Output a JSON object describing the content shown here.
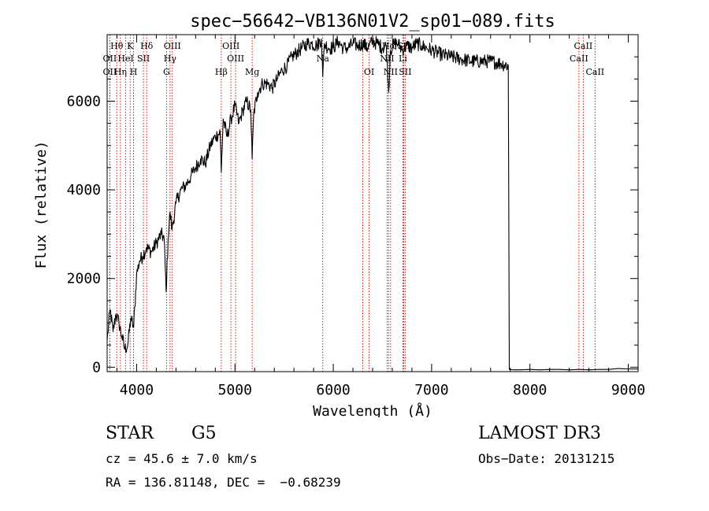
{
  "chart_data": {
    "type": "line",
    "title": "spec−56642−VB136N01V2_sp01−089.fits",
    "xlabel": "Wavelength (Å)",
    "ylabel": "Flux (relative)",
    "xlim": [
      3700,
      9100
    ],
    "ylim": [
      -100,
      7500
    ],
    "x_ticks": [
      4000,
      5000,
      6000,
      7000,
      8000,
      9000
    ],
    "x_tick_labels": [
      "4000",
      "5000",
      "6000",
      "7000",
      "8000",
      "9000"
    ],
    "y_ticks": [
      0,
      2000,
      4000,
      6000
    ],
    "y_tick_labels": [
      "0",
      "2000",
      "4000",
      "6000"
    ],
    "series": [
      {
        "name": "flux",
        "x": [
          3700,
          3730,
          3760,
          3790,
          3820,
          3850,
          3880,
          3910,
          3940,
          3970,
          4000,
          4030,
          4060,
          4100,
          4150,
          4200,
          4250,
          4280,
          4300,
          4320,
          4340,
          4360,
          4400,
          4450,
          4500,
          4550,
          4600,
          4650,
          4700,
          4750,
          4800,
          4850,
          4861,
          4880,
          4920,
          4960,
          5000,
          5040,
          5080,
          5120,
          5160,
          5175,
          5190,
          5230,
          5280,
          5330,
          5380,
          5430,
          5480,
          5530,
          5580,
          5630,
          5680,
          5730,
          5780,
          5830,
          5880,
          5893,
          5910,
          5950,
          6000,
          6050,
          6100,
          6150,
          6200,
          6250,
          6300,
          6350,
          6400,
          6450,
          6500,
          6540,
          6563,
          6580,
          6620,
          6660,
          6700,
          6750,
          6800,
          6850,
          6900,
          6950,
          7000,
          7100,
          7200,
          7300,
          7400,
          7500,
          7600,
          7700,
          7780,
          7785,
          7790,
          7800,
          7830,
          7900,
          8000,
          8100,
          8200,
          8300,
          8400,
          8500,
          8600,
          8700,
          8800,
          8900,
          9000,
          9100
        ],
        "y": [
          600,
          1300,
          800,
          1200,
          1000,
          700,
          400,
          500,
          1100,
          900,
          2100,
          2400,
          2500,
          2700,
          2600,
          2800,
          3000,
          2900,
          1700,
          2900,
          3500,
          3100,
          3700,
          4000,
          4100,
          4300,
          4500,
          4700,
          4600,
          5000,
          5200,
          5300,
          4400,
          5600,
          5200,
          5600,
          5900,
          5500,
          5800,
          6000,
          5800,
          4700,
          5700,
          6200,
          6400,
          6400,
          6300,
          6500,
          6700,
          6800,
          7000,
          7100,
          7200,
          7300,
          7300,
          7250,
          7400,
          6550,
          7300,
          7200,
          7200,
          7350,
          7200,
          7200,
          7300,
          7250,
          7300,
          7200,
          7350,
          7300,
          7200,
          7250,
          6200,
          7150,
          7300,
          7300,
          7150,
          7250,
          7200,
          7300,
          7250,
          7200,
          7150,
          7050,
          7000,
          6950,
          6900,
          6900,
          6900,
          6850,
          6800,
          3300,
          -50,
          -50,
          -60,
          -60,
          -50,
          -60,
          -50,
          -50,
          -60,
          -50,
          -60,
          -50,
          -50,
          -30,
          -40,
          -40
        ]
      }
    ],
    "spectral_lines": [
      {
        "label": "Hθ",
        "x": 3798,
        "row": 1
      },
      {
        "label": "OII",
        "x": 3727,
        "row": 2
      },
      {
        "label": "OII",
        "x": 3727,
        "row": 3
      },
      {
        "label": "K",
        "x": 3934,
        "row": 1
      },
      {
        "label": "HeI",
        "x": 3889,
        "row": 2
      },
      {
        "label": "Hη",
        "x": 3835,
        "row": 3
      },
      {
        "label": "SII",
        "x": 4069,
        "row": 2
      },
      {
        "label": "H",
        "x": 3969,
        "row": 3
      },
      {
        "label": "Hδ",
        "x": 4102,
        "row": 1
      },
      {
        "label": "OIII",
        "x": 4363,
        "row": 1
      },
      {
        "label": "Hγ",
        "x": 4340,
        "row": 2
      },
      {
        "label": "G",
        "x": 4304,
        "row": 3
      },
      {
        "label": "OIII",
        "x": 4959,
        "row": 1
      },
      {
        "label": "OIII",
        "x": 5007,
        "row": 2
      },
      {
        "label": "Hβ",
        "x": 4861,
        "row": 3
      },
      {
        "label": "Mg",
        "x": 5175,
        "row": 3
      },
      {
        "label": "Na",
        "x": 5893,
        "row": 2
      },
      {
        "label": "OI",
        "x": 6300,
        "row": 1
      },
      {
        "label": "OI",
        "x": 6364,
        "row": 3
      },
      {
        "label": "Hα",
        "x": 6563,
        "row": 1
      },
      {
        "label": "NII",
        "x": 6548,
        "row": 2
      },
      {
        "label": "NII",
        "x": 6583,
        "row": 3
      },
      {
        "label": "SII",
        "x": 6716,
        "row": 1
      },
      {
        "label": "Li",
        "x": 6708,
        "row": 2
      },
      {
        "label": "SII",
        "x": 6731,
        "row": 3
      },
      {
        "label": "CaII",
        "x": 8542,
        "row": 1
      },
      {
        "label": "CaII",
        "x": 8498,
        "row": 2
      },
      {
        "label": "CaII",
        "x": 8662,
        "row": 3
      }
    ],
    "grid": false,
    "legend": "none"
  },
  "info": {
    "class": "STAR",
    "subclass": "G5",
    "cz": "cz = 45.6 ± 7.0 km/s",
    "radec": "RA = 136.81148, DEC =  −0.68239",
    "survey": "LAMOST DR3",
    "obs_date": "Obs−Date: 20131215"
  },
  "colors": {
    "line": "#000000",
    "marker": "#cc0000",
    "axis": "#000000"
  }
}
